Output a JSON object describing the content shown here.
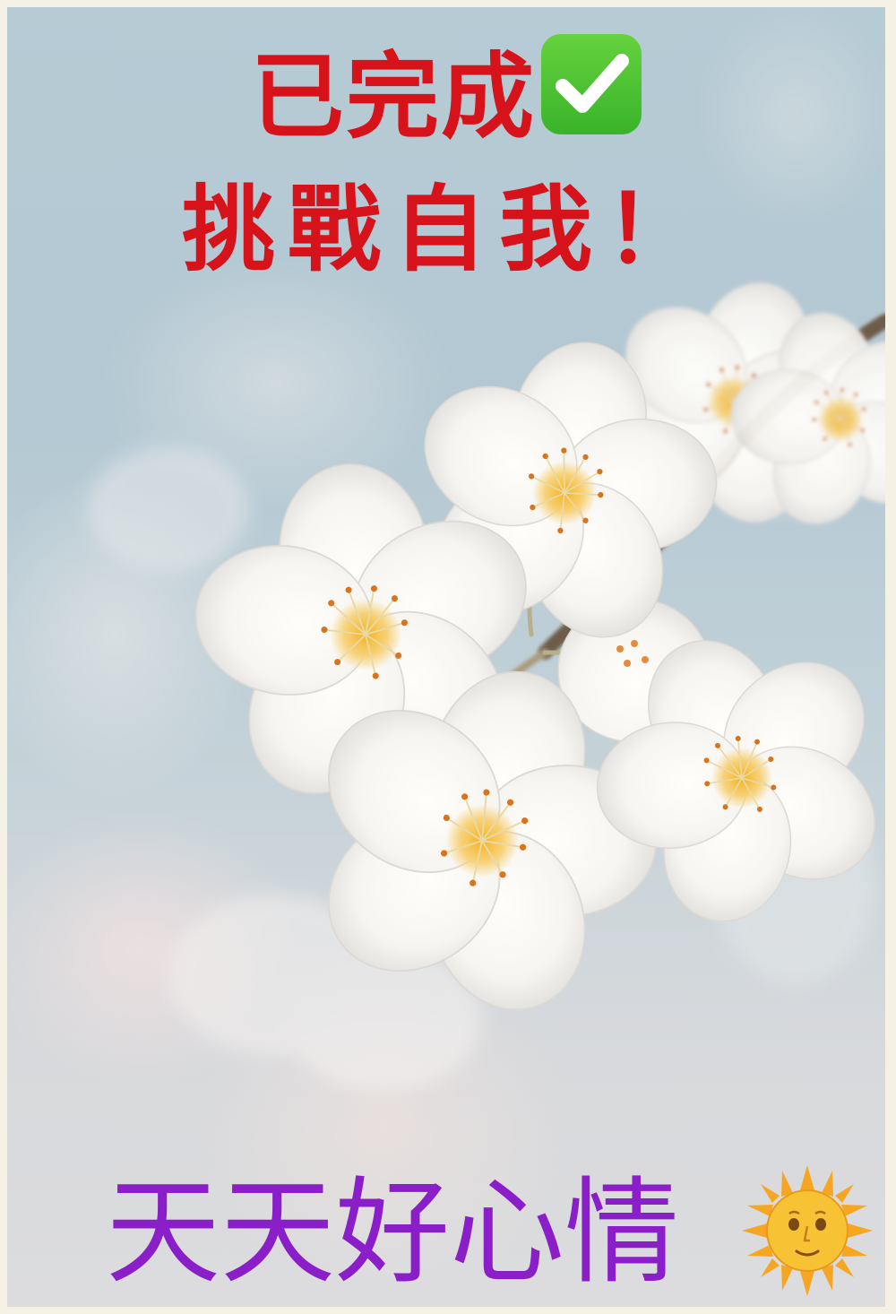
{
  "headline": {
    "line1": "已完成",
    "line2": "挑戰自我！",
    "color": "#d6121a",
    "icon": "check-mark-button-icon"
  },
  "footer": {
    "text": "天天好心情",
    "color": "#8a1fc9",
    "icon": "sun-with-face-icon"
  },
  "colors": {
    "background": "#b7cbd5",
    "frame": "#f5f1e4",
    "blossom": "#ffffff"
  }
}
